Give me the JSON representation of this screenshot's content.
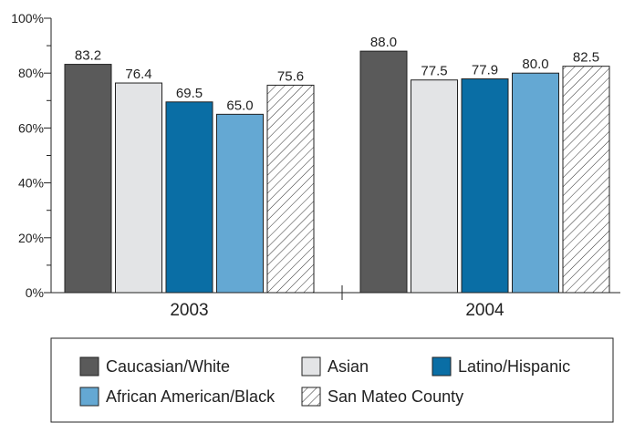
{
  "chart_data": {
    "type": "bar",
    "categories": [
      "2003",
      "2004"
    ],
    "series": [
      {
        "name": "Caucasian/White",
        "values": [
          83.2,
          88.0
        ],
        "labels": [
          "83.2",
          "88.0"
        ],
        "color": "#5a5a5a"
      },
      {
        "name": "Asian",
        "values": [
          76.4,
          77.5
        ],
        "labels": [
          "76.4",
          "77.5"
        ],
        "color": "#e3e4e6"
      },
      {
        "name": "Latino/Hispanic",
        "values": [
          69.5,
          77.9
        ],
        "labels": [
          "69.5",
          "77.9"
        ],
        "color": "#0a6ea5"
      },
      {
        "name": "African American/Black",
        "values": [
          65.0,
          80.0
        ],
        "labels": [
          "65.0",
          "80.0"
        ],
        "color": "#64a8d3"
      },
      {
        "name": "San Mateo County",
        "values": [
          75.6,
          82.5
        ],
        "labels": [
          "75.6",
          "82.5"
        ],
        "color": "#ffffff",
        "pattern": "diagonal-hatch"
      }
    ],
    "ylim": [
      0,
      100
    ],
    "yticks": [
      "0%",
      "20%",
      "40%",
      "60%",
      "80%",
      "100%"
    ],
    "grid": false,
    "legend_position": "bottom"
  }
}
